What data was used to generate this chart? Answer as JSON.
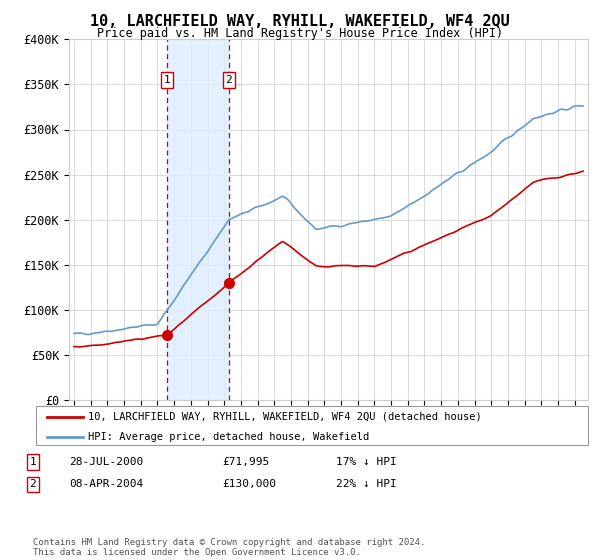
{
  "title": "10, LARCHFIELD WAY, RYHILL, WAKEFIELD, WF4 2QU",
  "subtitle": "Price paid vs. HM Land Registry's House Price Index (HPI)",
  "ylim": [
    0,
    400000
  ],
  "yticks": [
    0,
    50000,
    100000,
    150000,
    200000,
    250000,
    300000,
    350000,
    400000
  ],
  "ytick_labels": [
    "£0",
    "£50K",
    "£100K",
    "£150K",
    "£200K",
    "£250K",
    "£300K",
    "£350K",
    "£400K"
  ],
  "sale1_date_num": 2000.57,
  "sale1_price": 71995,
  "sale2_date_num": 2004.27,
  "sale2_price": 130000,
  "sale1_date_str": "28-JUL-2000",
  "sale1_price_str": "£71,995",
  "sale1_hpi": "17% ↓ HPI",
  "sale2_date_str": "08-APR-2004",
  "sale2_price_str": "£130,000",
  "sale2_hpi": "22% ↓ HPI",
  "hpi_color": "#6699cc",
  "price_color": "#cc0000",
  "shade_color": "#ddeeff",
  "legend_label1": "10, LARCHFIELD WAY, RYHILL, WAKEFIELD, WF4 2QU (detached house)",
  "legend_label2": "HPI: Average price, detached house, Wakefield",
  "footnote": "Contains HM Land Registry data © Crown copyright and database right 2024.\nThis data is licensed under the Open Government Licence v3.0.",
  "background_color": "#ffffff",
  "grid_color": "#cccccc"
}
